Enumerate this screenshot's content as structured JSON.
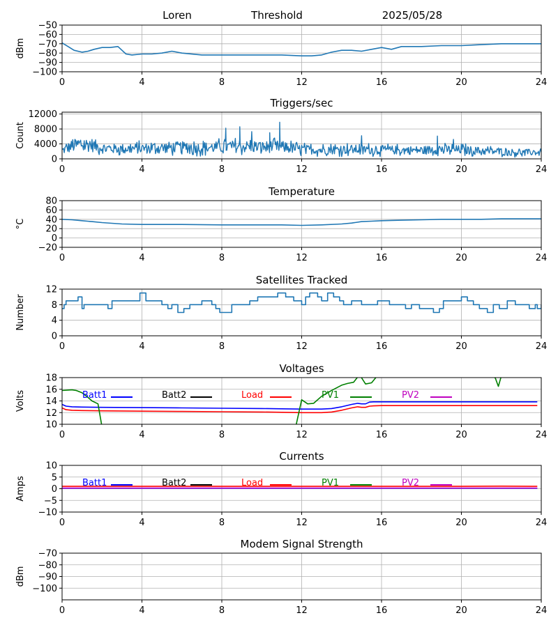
{
  "header": {
    "station": "Loren",
    "label": "Threshold",
    "date": "2025/05/28"
  },
  "colors": {
    "series": "#1f77b4",
    "blue": "#0000ff",
    "black": "#000000",
    "red": "#ff0000",
    "green": "#008000",
    "magenta": "#bf00bf",
    "grid": "#b0b0b0"
  },
  "x_ticks": [
    "0",
    "4",
    "8",
    "12",
    "16",
    "20",
    "24"
  ],
  "chart_data": [
    {
      "id": "threshold",
      "type": "line",
      "title": "",
      "ylabel": "dBm",
      "xlim": [
        0,
        24
      ],
      "ylim": [
        -100,
        -50
      ],
      "yticks": [
        -100,
        -90,
        -80,
        -70,
        -60,
        -50
      ],
      "series": [
        {
          "color": "series",
          "x": [
            0,
            0.3,
            0.6,
            1.0,
            1.3,
            1.6,
            2.0,
            2.4,
            2.8,
            3.0,
            3.2,
            3.5,
            4.0,
            4.5,
            5.0,
            5.5,
            6.0,
            7.0,
            8.0,
            9.0,
            10.0,
            11.0,
            12.0,
            12.5,
            13.0,
            13.5,
            14.0,
            14.5,
            15.0,
            15.5,
            16.0,
            16.5,
            17.0,
            18.0,
            19.0,
            20.0,
            21.0,
            22.0,
            23.0,
            24.0
          ],
          "y": [
            -69,
            -73,
            -77,
            -79,
            -78,
            -76,
            -74,
            -74,
            -73,
            -77,
            -81,
            -82,
            -81,
            -81,
            -80,
            -78,
            -80,
            -82,
            -82,
            -82,
            -82,
            -82,
            -83,
            -83,
            -82,
            -79,
            -77,
            -77,
            -78,
            -76,
            -74,
            -76,
            -73,
            -73,
            -72,
            -72,
            -71,
            -70,
            -70,
            -70
          ]
        }
      ]
    },
    {
      "id": "triggers",
      "type": "line",
      "title": "Triggers/sec",
      "ylabel": "Count",
      "xlim": [
        0,
        24
      ],
      "ylim": [
        0,
        12500
      ],
      "yticks": [
        0,
        4000,
        8000,
        12000
      ],
      "series": [
        {
          "color": "series",
          "noisy": true,
          "x": [
            0,
            0.5,
            1.0,
            1.5,
            2.0,
            2.5,
            3.0,
            4.0,
            5.0,
            6.0,
            7.0,
            8.0,
            9.0,
            10.0,
            10.5,
            11.0,
            12.0,
            13.0,
            14.0,
            15.0,
            16.0,
            17.0,
            18.0,
            19.0,
            20.0,
            21.0,
            22.0,
            23.0,
            24.0
          ],
          "y": [
            2200,
            3400,
            3900,
            3700,
            2900,
            2700,
            2700,
            2800,
            3000,
            3100,
            2900,
            3200,
            3300,
            3100,
            3300,
            3200,
            2500,
            2400,
            2500,
            2500,
            2400,
            2300,
            2300,
            2500,
            2400,
            2100,
            1900,
            1700,
            1800
          ],
          "spikes": [
            [
              8.2,
              8200
            ],
            [
              8.9,
              8600
            ],
            [
              9.5,
              7300
            ],
            [
              10.4,
              7000
            ],
            [
              10.9,
              9800
            ],
            [
              15.0,
              6200
            ],
            [
              18.8,
              6100
            ],
            [
              19.6,
              5200
            ]
          ]
        }
      ]
    },
    {
      "id": "temperature",
      "type": "line",
      "title": "Temperature",
      "ylabel": "°C",
      "xlim": [
        0,
        24
      ],
      "ylim": [
        -20,
        80
      ],
      "yticks": [
        -20,
        0,
        20,
        40,
        60,
        80
      ],
      "series": [
        {
          "color": "series",
          "x": [
            0,
            0.5,
            1.0,
            1.5,
            2.0,
            3.0,
            4.0,
            5.0,
            6.0,
            8.0,
            10.0,
            11.0,
            12.0,
            13.0,
            14.0,
            14.5,
            15.0,
            15.5,
            16.0,
            17.0,
            18.0,
            19.0,
            20.0,
            21.0,
            22.0,
            23.0,
            24.0
          ],
          "y": [
            40,
            39,
            37,
            35,
            33,
            30,
            29,
            29,
            29,
            28,
            28,
            28,
            27,
            28,
            30,
            32,
            35,
            36,
            37,
            38,
            39,
            40,
            40,
            40,
            41,
            41,
            41
          ]
        }
      ]
    },
    {
      "id": "satellites",
      "type": "line",
      "title": "Satellites Tracked",
      "ylabel": "Number",
      "xlim": [
        0,
        24
      ],
      "ylim": [
        0,
        12
      ],
      "yticks": [
        0,
        4,
        8,
        12
      ],
      "series": [
        {
          "color": "series",
          "step": true,
          "x": [
            0,
            0.1,
            0.2,
            0.8,
            1.0,
            1.1,
            1.4,
            2.3,
            2.5,
            3.5,
            3.9,
            4.2,
            5.0,
            5.3,
            5.5,
            5.8,
            6.1,
            6.4,
            6.7,
            7.0,
            7.5,
            7.7,
            7.9,
            8.5,
            9.0,
            9.4,
            9.8,
            10.3,
            10.8,
            11.2,
            11.6,
            12.0,
            12.2,
            12.4,
            12.8,
            13.0,
            13.3,
            13.6,
            13.9,
            14.1,
            14.5,
            15.0,
            15.3,
            15.8,
            16.1,
            16.4,
            16.9,
            17.2,
            17.5,
            17.9,
            18.2,
            18.6,
            18.9,
            19.1,
            19.6,
            20.0,
            20.3,
            20.6,
            20.9,
            21.3,
            21.6,
            21.9,
            22.3,
            22.7,
            23.0,
            23.4,
            23.7,
            23.8,
            24.0
          ],
          "y": [
            7,
            8,
            9,
            10,
            7,
            8,
            8,
            7,
            9,
            9,
            11,
            9,
            8,
            7,
            8,
            6,
            7,
            8,
            8,
            9,
            8,
            7,
            6,
            8,
            8,
            9,
            10,
            10,
            11,
            10,
            9,
            8,
            10,
            11,
            10,
            9,
            11,
            10,
            9,
            8,
            9,
            8,
            8,
            9,
            9,
            8,
            8,
            7,
            8,
            7,
            7,
            6,
            7,
            9,
            9,
            10,
            9,
            8,
            7,
            6,
            8,
            7,
            9,
            8,
            8,
            7,
            8,
            7,
            8
          ]
        }
      ]
    },
    {
      "id": "voltages",
      "type": "line",
      "title": "Voltages",
      "ylabel": "Volts",
      "xlim": [
        0,
        24
      ],
      "ylim": [
        10,
        18
      ],
      "yticks": [
        10,
        12,
        14,
        16,
        18
      ],
      "legend": [
        "Batt1",
        "Batt2",
        "Load",
        "PV1",
        "PV2"
      ],
      "legend_colors": [
        "blue",
        "black",
        "red",
        "green",
        "magenta"
      ],
      "series": [
        {
          "name": "Batt1",
          "color": "blue",
          "x": [
            0,
            0.2,
            0.5,
            1.0,
            2.0,
            4.0,
            6.0,
            8.0,
            10.0,
            11.0,
            12.0,
            13.0,
            13.5,
            14.0,
            14.5,
            14.8,
            15.0,
            15.2,
            15.4,
            15.6,
            16.0,
            17.0,
            18.0,
            20.0,
            22.0,
            23.0,
            23.8
          ],
          "y": [
            13.4,
            13.1,
            13.0,
            12.95,
            12.9,
            12.85,
            12.8,
            12.75,
            12.7,
            12.65,
            12.6,
            12.6,
            12.7,
            13.0,
            13.4,
            13.6,
            13.5,
            13.5,
            13.8,
            13.85,
            13.85,
            13.85,
            13.85,
            13.85,
            13.85,
            13.85,
            13.85
          ]
        },
        {
          "name": "Load",
          "color": "red",
          "x": [
            0,
            0.2,
            0.5,
            1.0,
            2.0,
            4.0,
            6.0,
            8.0,
            10.0,
            11.0,
            12.0,
            13.0,
            13.5,
            14.0,
            14.5,
            14.8,
            15.0,
            15.2,
            15.4,
            15.6,
            16.0,
            17.0,
            18.0,
            20.0,
            22.0,
            23.0,
            23.8
          ],
          "y": [
            12.8,
            12.5,
            12.4,
            12.35,
            12.3,
            12.25,
            12.2,
            12.15,
            12.1,
            12.05,
            12.0,
            12.0,
            12.1,
            12.4,
            12.8,
            13.0,
            12.9,
            12.9,
            13.1,
            13.15,
            13.2,
            13.2,
            13.2,
            13.2,
            13.2,
            13.2,
            13.2
          ]
        },
        {
          "name": "PV1",
          "color": "green",
          "clip": true,
          "x": [
            0,
            0.5,
            0.7,
            1.0,
            1.3,
            1.5,
            1.8,
            2.0,
            2.3,
            11.6,
            12.0,
            12.3,
            12.6,
            13.0,
            13.5,
            14.0,
            14.3,
            14.6,
            14.9,
            15.2,
            15.5,
            16.0,
            21.3,
            21.7,
            21.85,
            22.0,
            22.5
          ],
          "y": [
            15.8,
            15.9,
            15.8,
            15.4,
            14.6,
            14.0,
            13.5,
            9.5,
            8.0,
            8.0,
            14.2,
            13.5,
            13.6,
            14.8,
            15.8,
            16.7,
            17.0,
            17.2,
            18.5,
            16.9,
            17.1,
            19.2,
            19.2,
            17.9,
            16.5,
            18.3,
            19.0
          ]
        }
      ]
    },
    {
      "id": "currents",
      "type": "line",
      "title": "Currents",
      "ylabel": "Amps",
      "xlim": [
        0,
        24
      ],
      "ylim": [
        -10,
        10
      ],
      "yticks": [
        -10,
        -5,
        0,
        5,
        10
      ],
      "legend": [
        "Batt1",
        "Batt2",
        "Load",
        "PV1",
        "PV2"
      ],
      "legend_colors": [
        "blue",
        "black",
        "red",
        "green",
        "magenta"
      ],
      "series": [
        {
          "name": "Load",
          "color": "red",
          "x": [
            0,
            4,
            8,
            12,
            16,
            20,
            22,
            23.8
          ],
          "y": [
            1.0,
            1.0,
            1.0,
            1.0,
            1.0,
            1.0,
            1.1,
            1.0
          ]
        },
        {
          "name": "Batt1",
          "color": "blue",
          "x": [
            0,
            4,
            8,
            12,
            16,
            20,
            23.8
          ],
          "y": [
            0.2,
            0.2,
            0.2,
            0.2,
            0.2,
            0.2,
            0.2
          ]
        },
        {
          "name": "PV2",
          "color": "magenta",
          "x": [
            0,
            4,
            8,
            12,
            16,
            20,
            23.8
          ],
          "y": [
            0.3,
            0.3,
            0.3,
            0.3,
            0.3,
            0.3,
            0.3
          ]
        }
      ]
    },
    {
      "id": "modem",
      "type": "line",
      "title": "Modem Signal Strength",
      "ylabel": "dBm",
      "xlim": [
        0,
        24
      ],
      "ylim": [
        -110,
        -70
      ],
      "yticks": [
        -100,
        -90,
        -80,
        -70
      ],
      "series": []
    }
  ]
}
